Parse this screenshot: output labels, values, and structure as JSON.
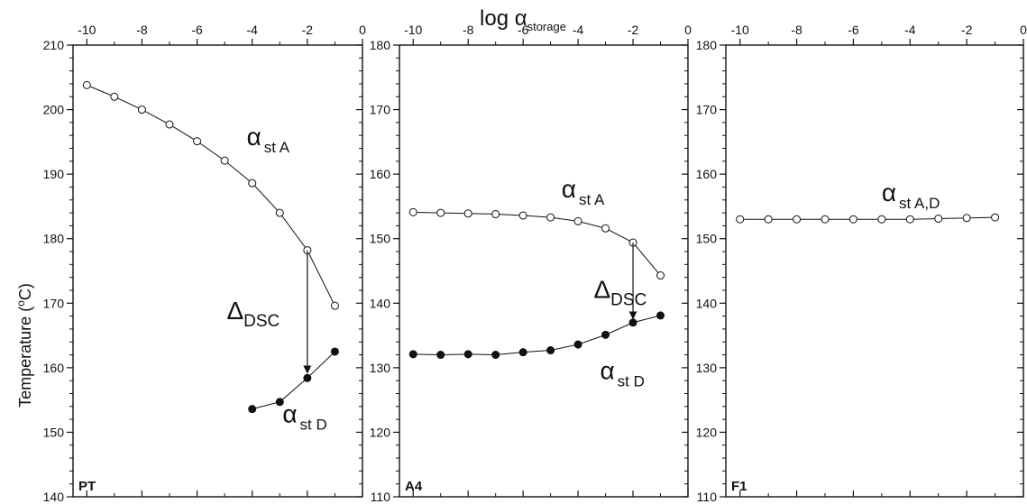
{
  "figure": {
    "top_axis_title": "log α",
    "top_axis_title_sub": "storage",
    "y_axis_title": "Temperature (",
    "y_axis_title_sup": "o",
    "y_axis_title_end": "C)"
  },
  "chart_data": [
    {
      "type": "line",
      "panel": "PT",
      "x_axis": "top",
      "xlim": [
        -10.5,
        0
      ],
      "xticks": [
        -10,
        -8,
        -6,
        -4,
        -2,
        0
      ],
      "ylim": [
        140,
        210
      ],
      "yticks": [
        140,
        150,
        160,
        170,
        180,
        190,
        200,
        210
      ],
      "ytick_side": "left",
      "series": [
        {
          "label_main": "α",
          "label_sub": "st A",
          "marker": "open",
          "x": [
            -10,
            -9,
            -8,
            -7,
            -6,
            -5,
            -4,
            -3,
            -2,
            -1
          ],
          "y": [
            203.8,
            202.0,
            200.0,
            197.7,
            195.1,
            192.1,
            188.6,
            184.0,
            178.2,
            169.6
          ]
        },
        {
          "label_main": "α",
          "label_sub": "st D",
          "marker": "filled",
          "x": [
            -4,
            -3,
            -2,
            -1
          ],
          "y": [
            153.6,
            154.7,
            158.4,
            162.5
          ]
        }
      ],
      "annotation": {
        "main": "Δ",
        "sub": "DSC",
        "arrow_x": -2,
        "arrow_from": 178.2,
        "arrow_to": 159.2
      }
    },
    {
      "type": "line",
      "panel": "A4",
      "x_axis": "top",
      "xlim": [
        -10.5,
        0
      ],
      "xticks": [
        -10,
        -8,
        -6,
        -4,
        -2,
        0
      ],
      "ylim": [
        110,
        180
      ],
      "yticks": [
        110,
        120,
        130,
        140,
        150,
        160,
        170,
        180
      ],
      "ytick_side": "left",
      "series": [
        {
          "label_main": "α",
          "label_sub": "st A",
          "marker": "open",
          "x": [
            -10,
            -9,
            -8,
            -7,
            -6,
            -5,
            -4,
            -3,
            -2,
            -1
          ],
          "y": [
            154.1,
            154.0,
            153.9,
            153.8,
            153.6,
            153.3,
            152.7,
            151.6,
            149.4,
            144.3
          ]
        },
        {
          "label_main": "α",
          "label_sub": "st D",
          "marker": "filled",
          "x": [
            -10,
            -9,
            -8,
            -7,
            -6,
            -5,
            -4,
            -3,
            -2,
            -1
          ],
          "y": [
            132.1,
            132.0,
            132.1,
            132.0,
            132.4,
            132.7,
            133.6,
            135.1,
            137.0,
            138.1
          ]
        }
      ],
      "annotation": {
        "main": "Δ",
        "sub": "DSC",
        "arrow_x": -2,
        "arrow_from": 149.4,
        "arrow_to": 137.6
      }
    },
    {
      "type": "line",
      "panel": "F1",
      "x_axis": "top",
      "xlim": [
        -10.5,
        0
      ],
      "xticks": [
        -10,
        -8,
        -6,
        -4,
        -2,
        0
      ],
      "ylim": [
        110,
        180
      ],
      "yticks": [
        110,
        120,
        130,
        140,
        150,
        160,
        170,
        180
      ],
      "ytick_side": "left",
      "series": [
        {
          "label_main": "α",
          "label_sub": "st A,D",
          "marker": "open",
          "x": [
            -10,
            -9,
            -8,
            -7,
            -6,
            -5,
            -4,
            -3,
            -2,
            -1
          ],
          "y": [
            153.0,
            153.0,
            153.0,
            153.0,
            153.0,
            153.0,
            153.0,
            153.1,
            153.2,
            153.3
          ]
        }
      ]
    }
  ]
}
